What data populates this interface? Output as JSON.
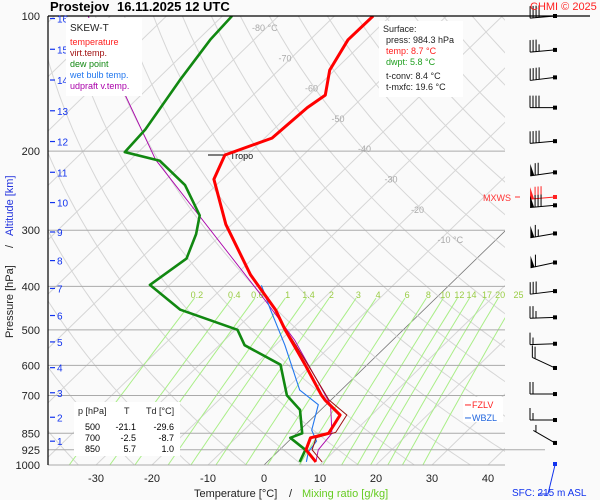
{
  "header": {
    "station": "Prostejov",
    "datetime": "16.11.2025 12 UTC",
    "copyright": "CHMI © 2025"
  },
  "legend": {
    "title": "SKEW-T",
    "items": [
      {
        "label": "temperature",
        "color": "#ff0000"
      },
      {
        "label": "virt.temp.",
        "color": "#a01010"
      },
      {
        "label": "dew point",
        "color": "#118811"
      },
      {
        "label": "wet bulb temp.",
        "color": "#2277ee"
      },
      {
        "label": "udpraft v.temp.",
        "color": "#aa00aa"
      }
    ]
  },
  "surface": {
    "title": "Surface:",
    "press": "press: 984.3 hPa",
    "temp": "temp: 8.7 °C",
    "dwpt": "dwpt: 5.8 °C",
    "tconv": "t-conv: 8.4 °C",
    "tmxfc": "t-mxfc: 19.6 °C"
  },
  "table": {
    "headers": [
      "p [hPa]",
      "T",
      "Td [°C]"
    ],
    "rows": [
      [
        "500",
        "-21.1",
        "-29.6"
      ],
      [
        "700",
        "-2.5",
        "-8.7"
      ],
      [
        "850",
        "5.7",
        "1.0"
      ]
    ]
  },
  "markers": {
    "tropo": "Tropo",
    "tropo_p": 204,
    "mxws": "MXWS",
    "mxws_p": 253,
    "fzlv": "FZLV",
    "fzlv_p": 735,
    "wbzl": "WBZL",
    "wbzl_p": 765
  },
  "footer": {
    "sfc": "SFC: 215 m ASL"
  },
  "chart_data": {
    "type": "line",
    "title": "SKEW-T",
    "xlabel": "Temperature [°C]",
    "xlabel2": "Mixing ratio [g/kg]",
    "ylabel": "Pressure [hPa]",
    "ylabel2": "Altitude [km]",
    "y_scale": "log",
    "ylim": [
      1000,
      100
    ],
    "xlim_at_1000hPa": [
      -38,
      43
    ],
    "x_ticks": [
      "-30",
      "-20",
      "-10",
      "0",
      "10",
      "20",
      "30",
      "40"
    ],
    "y_ticks": [
      "100",
      "200",
      "300",
      "400",
      "500",
      "600",
      "700",
      "850",
      "925",
      "1000"
    ],
    "altitude_ticks_km": [
      "1",
      "2",
      "3",
      "4",
      "5",
      "6",
      "7",
      "8",
      "9",
      "10",
      "11",
      "12",
      "13",
      "14",
      "15",
      "16"
    ],
    "isotherm_labels": [
      {
        "T": -80,
        "label": "-80 °C"
      },
      {
        "T": -70,
        "label": "-70"
      },
      {
        "T": -60,
        "label": "-60"
      },
      {
        "T": -50,
        "label": "-50"
      },
      {
        "T": -40,
        "label": "-40"
      },
      {
        "T": -30,
        "label": "-30"
      },
      {
        "T": -20,
        "label": "-20"
      },
      {
        "T": -10,
        "label": "-10 °C"
      }
    ],
    "mixing_ratio_labels": [
      "0.2",
      "0.4",
      "0.6",
      "1",
      "1.4",
      "2",
      "3",
      "4",
      "6",
      "8",
      "10",
      "12",
      "14",
      "17",
      "20",
      "25"
    ],
    "series": [
      {
        "name": "temperature",
        "color": "#ff0000",
        "points": [
          [
            100,
            -63.1
          ],
          [
            113,
            -63.2
          ],
          [
            132,
            -60.9
          ],
          [
            150,
            -57.1
          ],
          [
            160,
            -58.0
          ],
          [
            187,
            -58.7
          ],
          [
            204,
            -64.0
          ],
          [
            231,
            -61.5
          ],
          [
            291,
            -51.1
          ],
          [
            377,
            -37.4
          ],
          [
            451,
            -26.5
          ],
          [
            500,
            -21.1
          ],
          [
            598,
            -11.1
          ],
          [
            700,
            -2.5
          ],
          [
            716,
            -1.1
          ],
          [
            774,
            4.4
          ],
          [
            850,
            5.7
          ],
          [
            870,
            3.3
          ],
          [
            925,
            4.7
          ],
          [
            984.3,
            8.7
          ]
        ]
      },
      {
        "name": "virt.temp.",
        "color": "#a01010",
        "points": [
          [
            451,
            -26.4
          ],
          [
            500,
            -20.9
          ],
          [
            598,
            -10.6
          ],
          [
            716,
            -0.4
          ],
          [
            774,
            5.6
          ],
          [
            846,
            6.8
          ],
          [
            870,
            4.3
          ],
          [
            925,
            5.8
          ],
          [
            984.3,
            9.8
          ]
        ]
      },
      {
        "name": "dew point",
        "color": "#118811",
        "points": [
          [
            100,
            -88.3
          ],
          [
            113,
            -87.8
          ],
          [
            139,
            -85.8
          ],
          [
            179,
            -82.9
          ],
          [
            201,
            -82.4
          ],
          [
            210,
            -74.6
          ],
          [
            238,
            -65.6
          ],
          [
            278,
            -57.4
          ],
          [
            306,
            -54.6
          ],
          [
            347,
            -51.8
          ],
          [
            397,
            -53.5
          ],
          [
            451,
            -43.5
          ],
          [
            500,
            -29.6
          ],
          [
            541,
            -25.5
          ],
          [
            598,
            -15.5
          ],
          [
            700,
            -8.7
          ],
          [
            754,
            -3.7
          ],
          [
            850,
            1.0
          ],
          [
            870,
            -0.3
          ],
          [
            925,
            4.6
          ],
          [
            984.3,
            5.8
          ]
        ]
      },
      {
        "name": "wet bulb temp.",
        "color": "#2277ee",
        "points": [
          [
            398,
            -33.5
          ],
          [
            451,
            -27.4
          ],
          [
            541,
            -18.3
          ],
          [
            681,
            -7.4
          ],
          [
            734,
            -1.4
          ],
          [
            836,
            2.1
          ],
          [
            885,
            5.0
          ],
          [
            935,
            5.5
          ],
          [
            984.3,
            7.0
          ]
        ]
      },
      {
        "name": "udpraft v.temp.",
        "color": "#aa00aa",
        "points": [
          [
            100,
            -114
          ],
          [
            209,
            -75.5
          ],
          [
            429,
            -30.2
          ],
          [
            527,
            -17.5
          ],
          [
            734,
            0.8
          ],
          [
            850,
            6.3
          ],
          [
            925,
            6.9
          ],
          [
            984.3,
            8.7
          ]
        ]
      }
    ],
    "wind_barbs": [
      {
        "p": 100,
        "kt": 40,
        "dir": 265
      },
      {
        "p": 119,
        "kt": 35,
        "dir": 265
      },
      {
        "p": 137,
        "kt": 40,
        "dir": 263
      },
      {
        "p": 160,
        "kt": 40,
        "dir": 270
      },
      {
        "p": 190,
        "kt": 40,
        "dir": 265
      },
      {
        "p": 223,
        "kt": 70,
        "dir": 262
      },
      {
        "p": 253,
        "kt": 80,
        "dir": 265,
        "max": true
      },
      {
        "p": 264,
        "kt": 80,
        "dir": 265
      },
      {
        "p": 305,
        "kt": 65,
        "dir": 260
      },
      {
        "p": 354,
        "kt": 60,
        "dir": 258
      },
      {
        "p": 410,
        "kt": 30,
        "dir": 263
      },
      {
        "p": 469,
        "kt": 25,
        "dir": 268
      },
      {
        "p": 537,
        "kt": 15,
        "dir": 268
      },
      {
        "p": 608,
        "kt": 20,
        "dir": 295
      },
      {
        "p": 695,
        "kt": 20,
        "dir": 270
      },
      {
        "p": 794,
        "kt": 15,
        "dir": 270
      },
      {
        "p": 893,
        "kt": 5,
        "dir": 300
      }
    ]
  }
}
